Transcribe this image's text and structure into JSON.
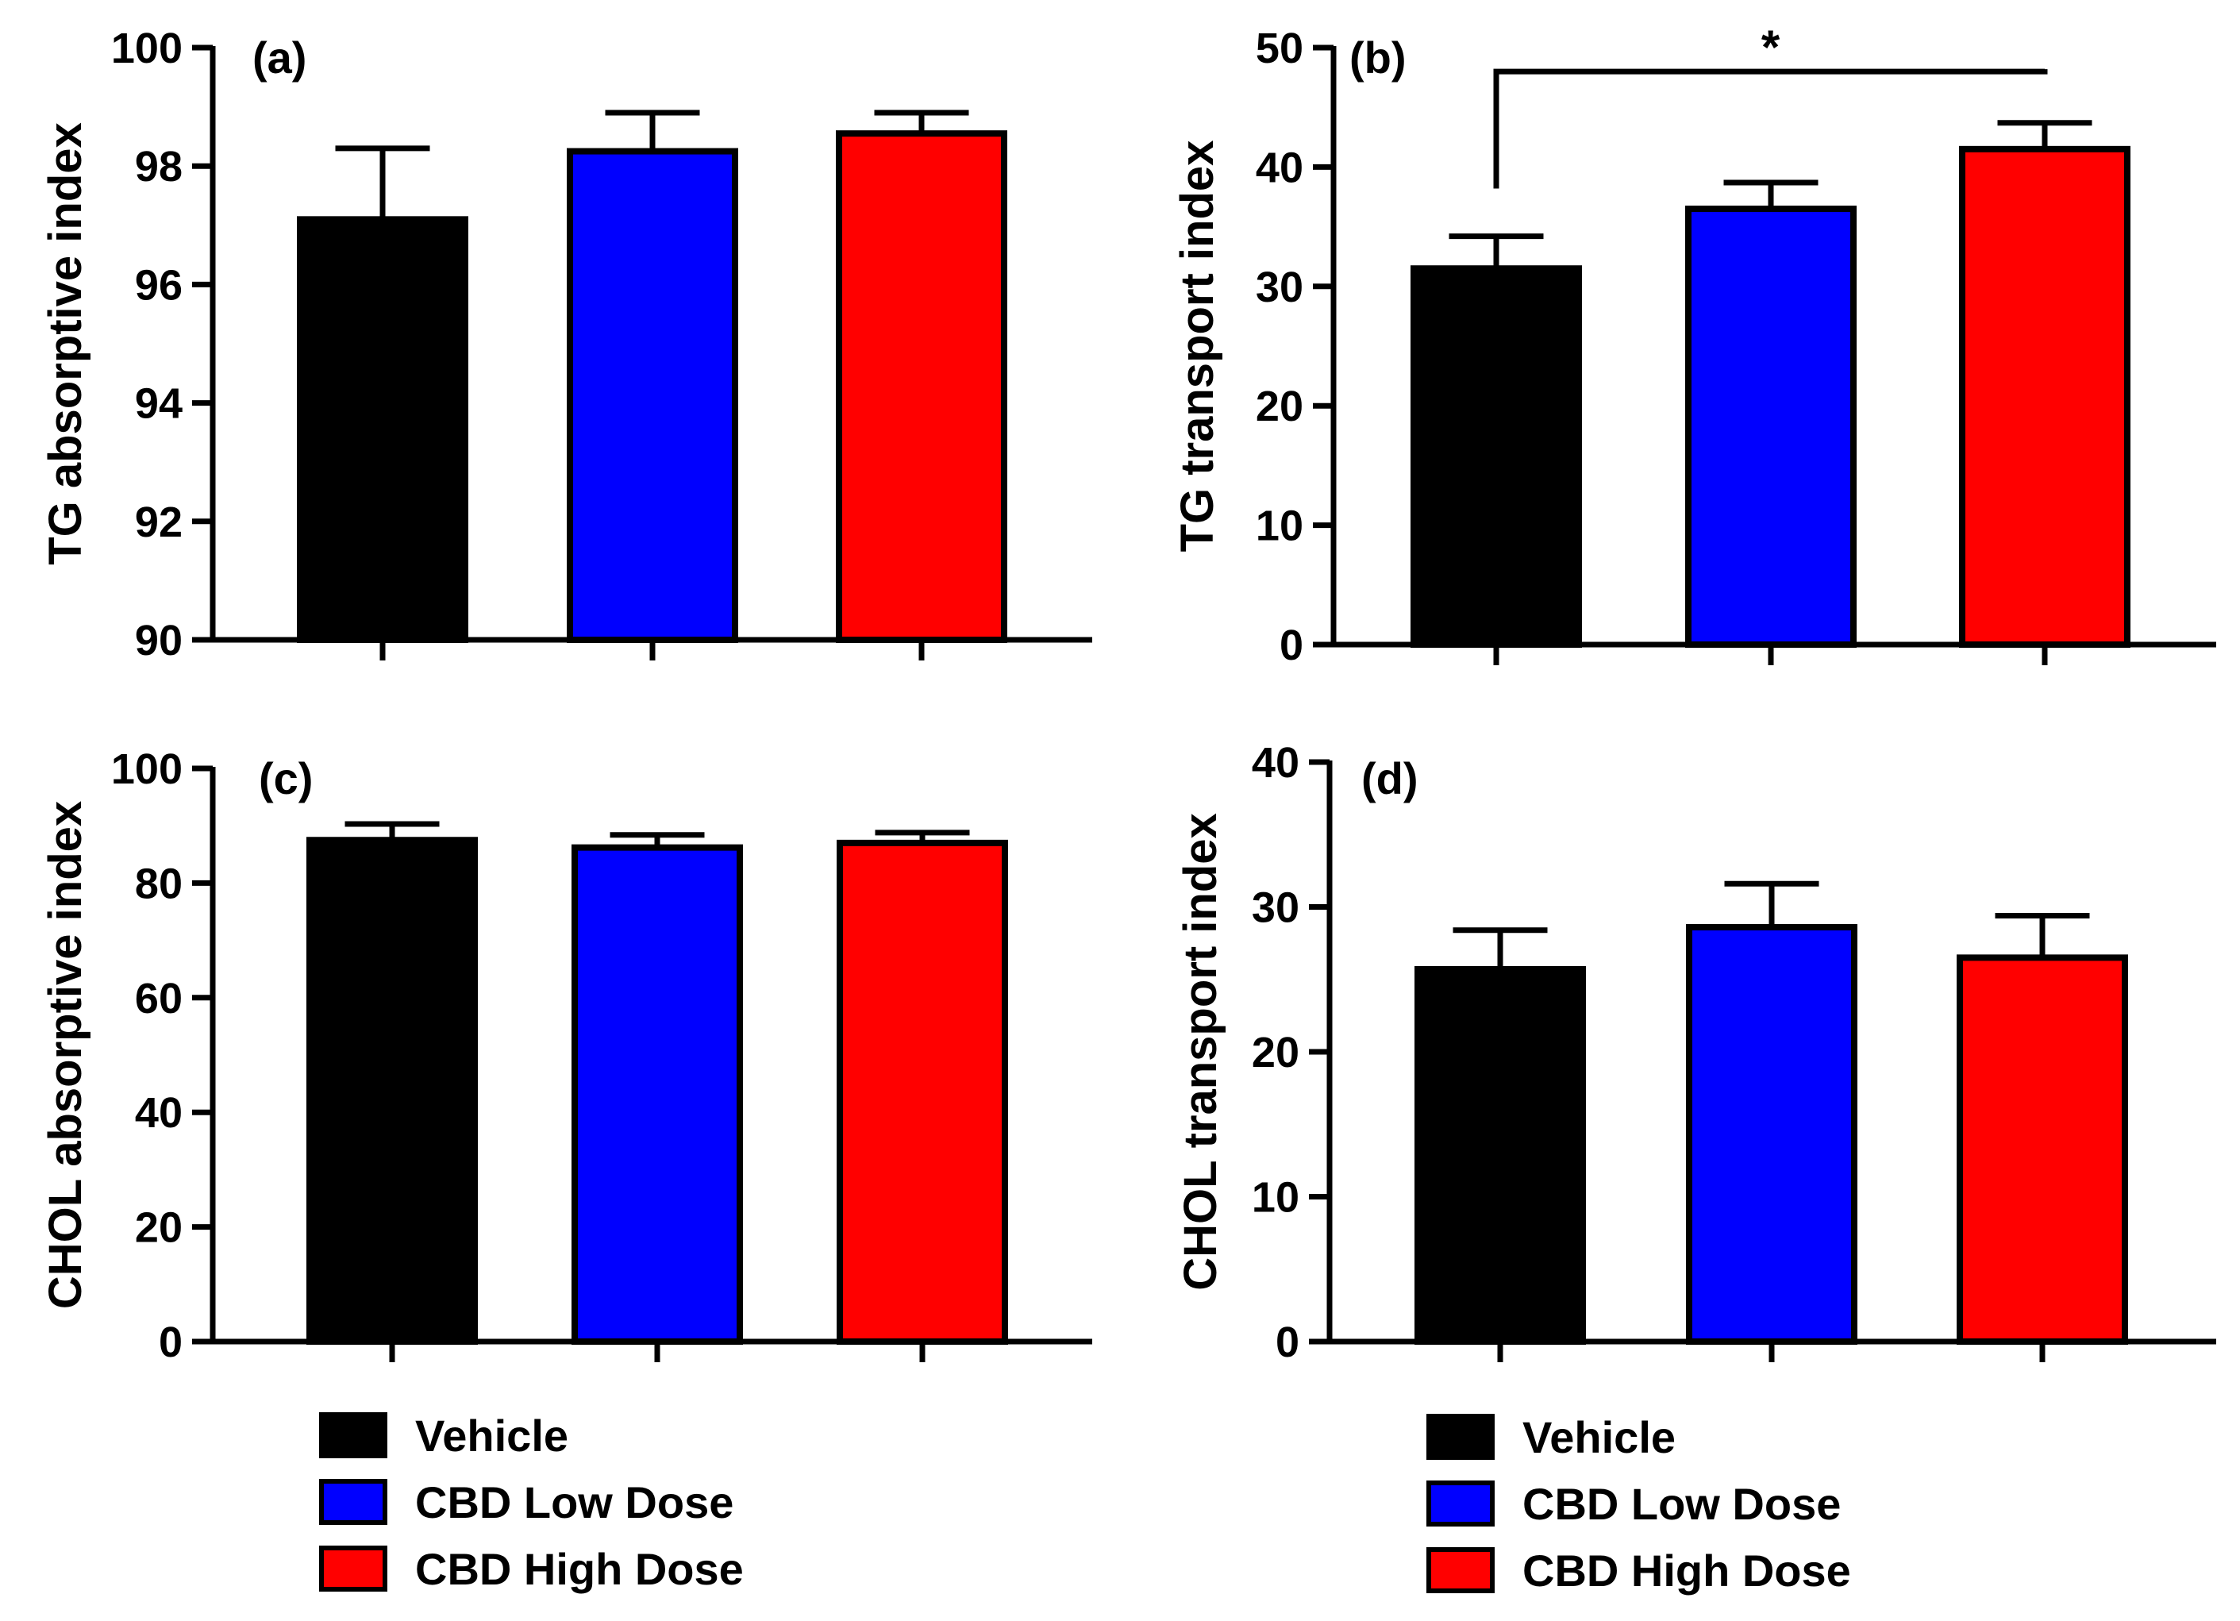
{
  "groups": [
    {
      "name": "Vehicle",
      "color": "#000000"
    },
    {
      "name": "CBD Low Dose",
      "color": "#0000ff"
    },
    {
      "name": "CBD High Dose",
      "color": "#ff0000"
    }
  ],
  "chart_data": [
    {
      "type": "bar",
      "panel": "(a)",
      "ylabel": "TG absorptive index",
      "categories": [
        "Vehicle",
        "CBD Low Dose",
        "CBD High Dose"
      ],
      "values": [
        97.1,
        98.25,
        98.55
      ],
      "errors": [
        1.2,
        0.65,
        0.35
      ],
      "ylim": [
        90,
        100
      ],
      "yticks": [
        90,
        92,
        94,
        96,
        98,
        100
      ],
      "colors": [
        "#000000",
        "#0000ff",
        "#ff0000"
      ]
    },
    {
      "type": "bar",
      "panel": "(b)",
      "ylabel": "TG transport index",
      "categories": [
        "Vehicle",
        "CBD Low Dose",
        "CBD High Dose"
      ],
      "values": [
        31.5,
        36.5,
        41.5
      ],
      "errors": [
        2.7,
        2.2,
        2.2
      ],
      "ylim": [
        0,
        50
      ],
      "yticks": [
        0,
        10,
        20,
        30,
        40,
        50
      ],
      "colors": [
        "#000000",
        "#0000ff",
        "#ff0000"
      ],
      "significance": {
        "from": 0,
        "to": 2,
        "label": "*",
        "level": 48
      }
    },
    {
      "type": "bar",
      "panel": "(c)",
      "ylabel": "CHOL absorptive index",
      "categories": [
        "Vehicle",
        "CBD Low Dose",
        "CBD High Dose"
      ],
      "values": [
        87.5,
        86.2,
        87.0
      ],
      "errors": [
        2.8,
        2.2,
        1.8
      ],
      "ylim": [
        0,
        100
      ],
      "yticks": [
        0,
        20,
        40,
        60,
        80,
        100
      ],
      "colors": [
        "#000000",
        "#0000ff",
        "#ff0000"
      ]
    },
    {
      "type": "bar",
      "panel": "(d)",
      "ylabel": "CHOL transport index",
      "categories": [
        "Vehicle",
        "CBD Low Dose",
        "CBD High Dose"
      ],
      "values": [
        25.7,
        28.6,
        26.5
      ],
      "errors": [
        2.7,
        3.0,
        2.9
      ],
      "ylim": [
        0,
        40
      ],
      "yticks": [
        0,
        10,
        20,
        30,
        40
      ],
      "colors": [
        "#000000",
        "#0000ff",
        "#ff0000"
      ]
    }
  ]
}
